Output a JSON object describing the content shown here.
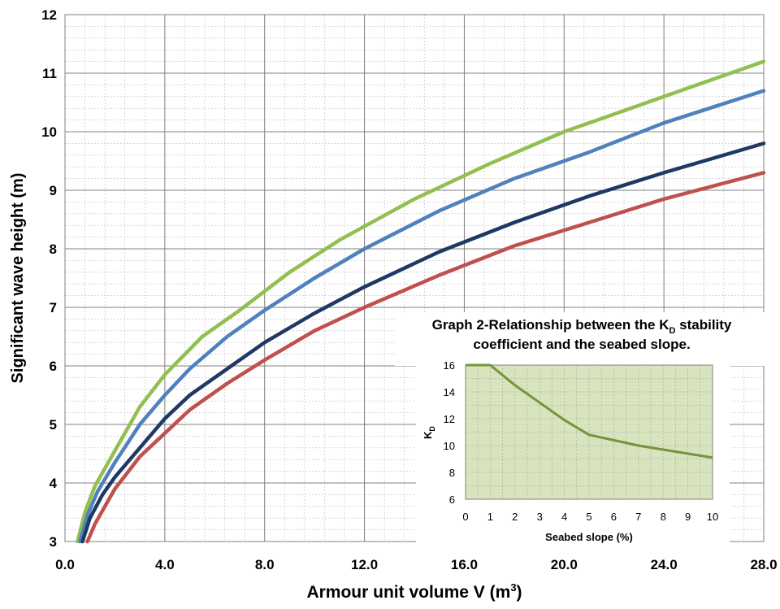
{
  "chart_data": [
    {
      "type": "line",
      "title": "",
      "xlabel": "Armour unit volume V (m",
      "xlabel_sup": "3",
      "xlabel_end": ")",
      "ylabel": "Significant wave height (m)",
      "xlim": [
        0,
        28
      ],
      "ylim": [
        3,
        12
      ],
      "xticks": [
        "0.0",
        "4.0",
        "8.0",
        "12.0",
        "16.0",
        "20.0",
        "24.0",
        "28.0"
      ],
      "yticks": [
        "3",
        "4",
        "5",
        "6",
        "7",
        "8",
        "9",
        "10",
        "11",
        "12"
      ],
      "grid": true,
      "series": [
        {
          "color": "#92BF50",
          "x": [
            0.5,
            0.8,
            1.2,
            2,
            3,
            4,
            5.5,
            7,
            9,
            11,
            14,
            17,
            20,
            24,
            28
          ],
          "y": [
            3.0,
            3.5,
            3.95,
            4.55,
            5.3,
            5.85,
            6.5,
            6.95,
            7.6,
            8.15,
            8.85,
            9.45,
            10.0,
            10.6,
            11.2
          ]
        },
        {
          "color": "#4F81BD",
          "x": [
            0.6,
            0.9,
            1.3,
            2,
            3,
            4,
            5,
            6.5,
            8,
            10,
            12,
            15,
            18,
            21,
            24,
            28
          ],
          "y": [
            3.0,
            3.45,
            3.85,
            4.35,
            5.0,
            5.5,
            5.95,
            6.5,
            6.95,
            7.5,
            8.0,
            8.65,
            9.2,
            9.65,
            10.15,
            10.7
          ]
        },
        {
          "color": "#1F3864",
          "x": [
            0.7,
            1.0,
            1.5,
            2,
            3,
            4,
            5,
            6.5,
            8,
            10,
            12,
            15,
            18,
            21,
            24,
            28
          ],
          "y": [
            3.0,
            3.4,
            3.8,
            4.1,
            4.6,
            5.1,
            5.5,
            5.95,
            6.4,
            6.9,
            7.35,
            7.95,
            8.45,
            8.9,
            9.3,
            9.8
          ]
        },
        {
          "color": "#C0504D",
          "x": [
            0.9,
            1.2,
            1.6,
            2,
            3,
            4,
            5,
            6.5,
            8,
            10,
            12,
            15,
            18,
            21,
            24,
            28
          ],
          "y": [
            3.0,
            3.3,
            3.6,
            3.9,
            4.45,
            4.85,
            5.25,
            5.7,
            6.1,
            6.6,
            7.0,
            7.55,
            8.05,
            8.45,
            8.85,
            9.3
          ]
        }
      ]
    },
    {
      "type": "line",
      "title_line1": "Graph 2-Relationship between the K",
      "title_sub": "D",
      "title_line1_end": " stability",
      "title_line2": "coefficient  and the seabed slope.",
      "xlabel": "Seabed slope (%)",
      "ylabel": "K",
      "ylabel_sub": "D",
      "xlim": [
        0,
        10
      ],
      "ylim": [
        6,
        16
      ],
      "xticks": [
        "0",
        "1",
        "2",
        "3",
        "4",
        "5",
        "6",
        "7",
        "8",
        "9",
        "10"
      ],
      "yticks": [
        "6",
        "8",
        "10",
        "12",
        "14",
        "16"
      ],
      "grid": true,
      "background": "#D7E4BD",
      "series": [
        {
          "color": "#77933C",
          "x": [
            0,
            1,
            2,
            3,
            4,
            5,
            6,
            7,
            8,
            9,
            10
          ],
          "y": [
            16,
            16,
            14.5,
            13.2,
            11.9,
            10.8,
            10.4,
            10.0,
            9.7,
            9.4,
            9.1
          ]
        }
      ]
    }
  ]
}
